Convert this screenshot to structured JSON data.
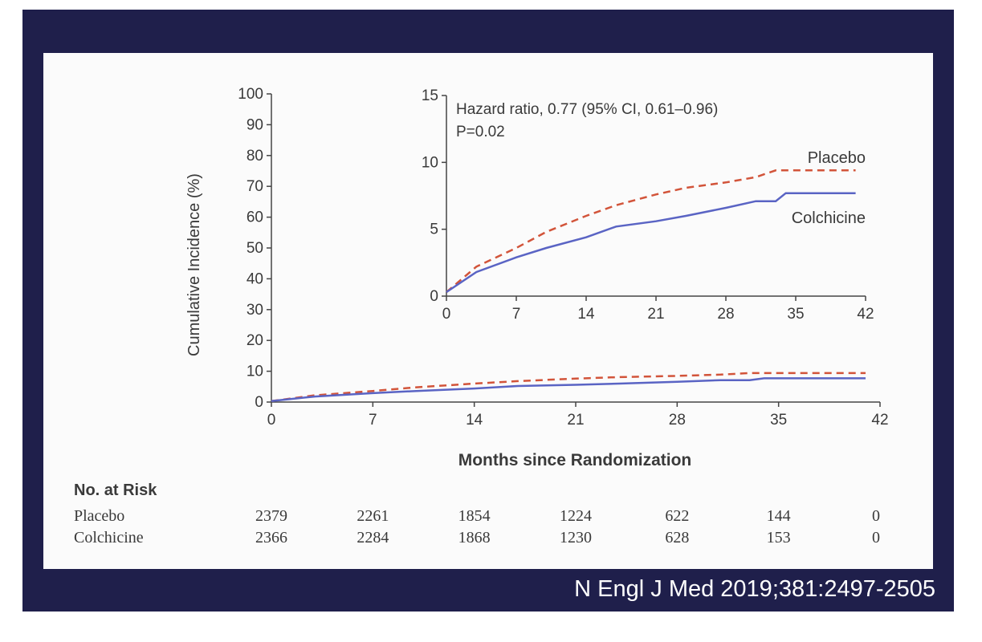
{
  "citation": "N Engl J Med 2019;381:2497-2505",
  "colors": {
    "frame": "#1f1f4b",
    "placebo": "#d2543a",
    "colchicine": "#5a64c4"
  },
  "chart_data": {
    "type": "line",
    "title": "",
    "xlabel": "Months since Randomization",
    "ylabel": "Cumulative Incidence (%)",
    "main": {
      "xlim": [
        0,
        42
      ],
      "ylim": [
        0,
        100
      ],
      "xticks": [
        0,
        7,
        14,
        21,
        28,
        35,
        42
      ],
      "yticks": [
        0,
        10,
        20,
        30,
        40,
        50,
        60,
        70,
        80,
        90,
        100
      ]
    },
    "inset": {
      "xlim": [
        0,
        42
      ],
      "ylim": [
        0,
        15
      ],
      "xticks": [
        0,
        7,
        14,
        21,
        28,
        35,
        42
      ],
      "yticks": [
        0,
        5,
        10,
        15
      ],
      "annotation": [
        "Hazard ratio, 0.77 (95% CI, 0.61–0.96)",
        "P=0.02"
      ]
    },
    "series": [
      {
        "name": "Placebo",
        "style": "dashed",
        "x": [
          0,
          3,
          7,
          10,
          14,
          17,
          21,
          24,
          28,
          31,
          33,
          35,
          38,
          41
        ],
        "y": [
          0.3,
          2.2,
          3.6,
          4.8,
          6.0,
          6.8,
          7.6,
          8.1,
          8.5,
          8.9,
          9.4,
          9.4,
          9.4,
          9.4
        ]
      },
      {
        "name": "Colchicine",
        "style": "solid",
        "x": [
          0,
          3,
          7,
          10,
          14,
          17,
          21,
          24,
          28,
          31,
          33,
          34,
          38,
          41
        ],
        "y": [
          0.3,
          1.8,
          2.9,
          3.6,
          4.4,
          5.2,
          5.6,
          6.0,
          6.6,
          7.1,
          7.1,
          7.7,
          7.7,
          7.7
        ]
      }
    ],
    "risk_table": {
      "header": "No. at Risk",
      "rows": [
        {
          "label": "Placebo",
          "values": [
            "2379",
            "2261",
            "1854",
            "1224",
            "622",
            "144",
            "0"
          ]
        },
        {
          "label": "Colchicine",
          "values": [
            "2366",
            "2284",
            "1868",
            "1230",
            "628",
            "153",
            "0"
          ]
        }
      ]
    }
  }
}
